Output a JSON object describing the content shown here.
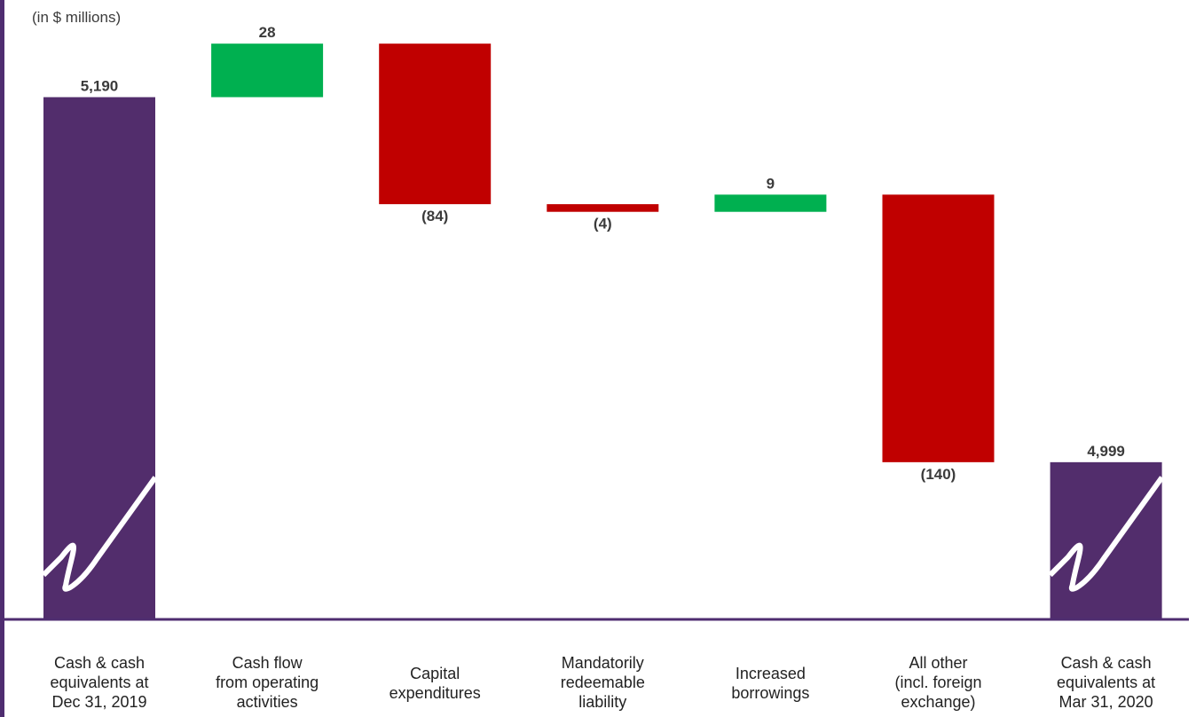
{
  "unit_note": "(in $ millions)",
  "colors": {
    "total": "#522d6c",
    "increase": "#00b050",
    "decrease": "#c00000",
    "axis": "#4f2d70",
    "break_mark": "#ffffff"
  },
  "chart_data": {
    "type": "bar",
    "subtype": "waterfall",
    "title": "",
    "xlabel": "",
    "ylabel": "",
    "unit": "(in $ millions)",
    "axis_break": true,
    "ylim": [
      4920,
      5240
    ],
    "grid": false,
    "legend": "none",
    "categories": [
      [
        "Cash & cash",
        "equivalents at",
        "Dec 31, 2019"
      ],
      [
        "Cash flow",
        "from operating",
        "activities"
      ],
      [
        "Capital",
        "expenditures"
      ],
      [
        "Mandatorily",
        "redeemable",
        "liability"
      ],
      [
        "Increased",
        "borrowings"
      ],
      [
        "All other",
        "(incl. foreign",
        "exchange)"
      ],
      [
        "Cash & cash",
        "equivalents at",
        "Mar 31, 2020"
      ]
    ],
    "values": [
      5190,
      28,
      -84,
      -4,
      9,
      -140,
      4999
    ],
    "kinds": [
      "total",
      "increase",
      "decrease",
      "decrease",
      "increase",
      "decrease",
      "total"
    ],
    "data_labels": [
      "5,190",
      "28",
      "(84)",
      "(4)",
      "9",
      "(140)",
      "4,999"
    ]
  }
}
